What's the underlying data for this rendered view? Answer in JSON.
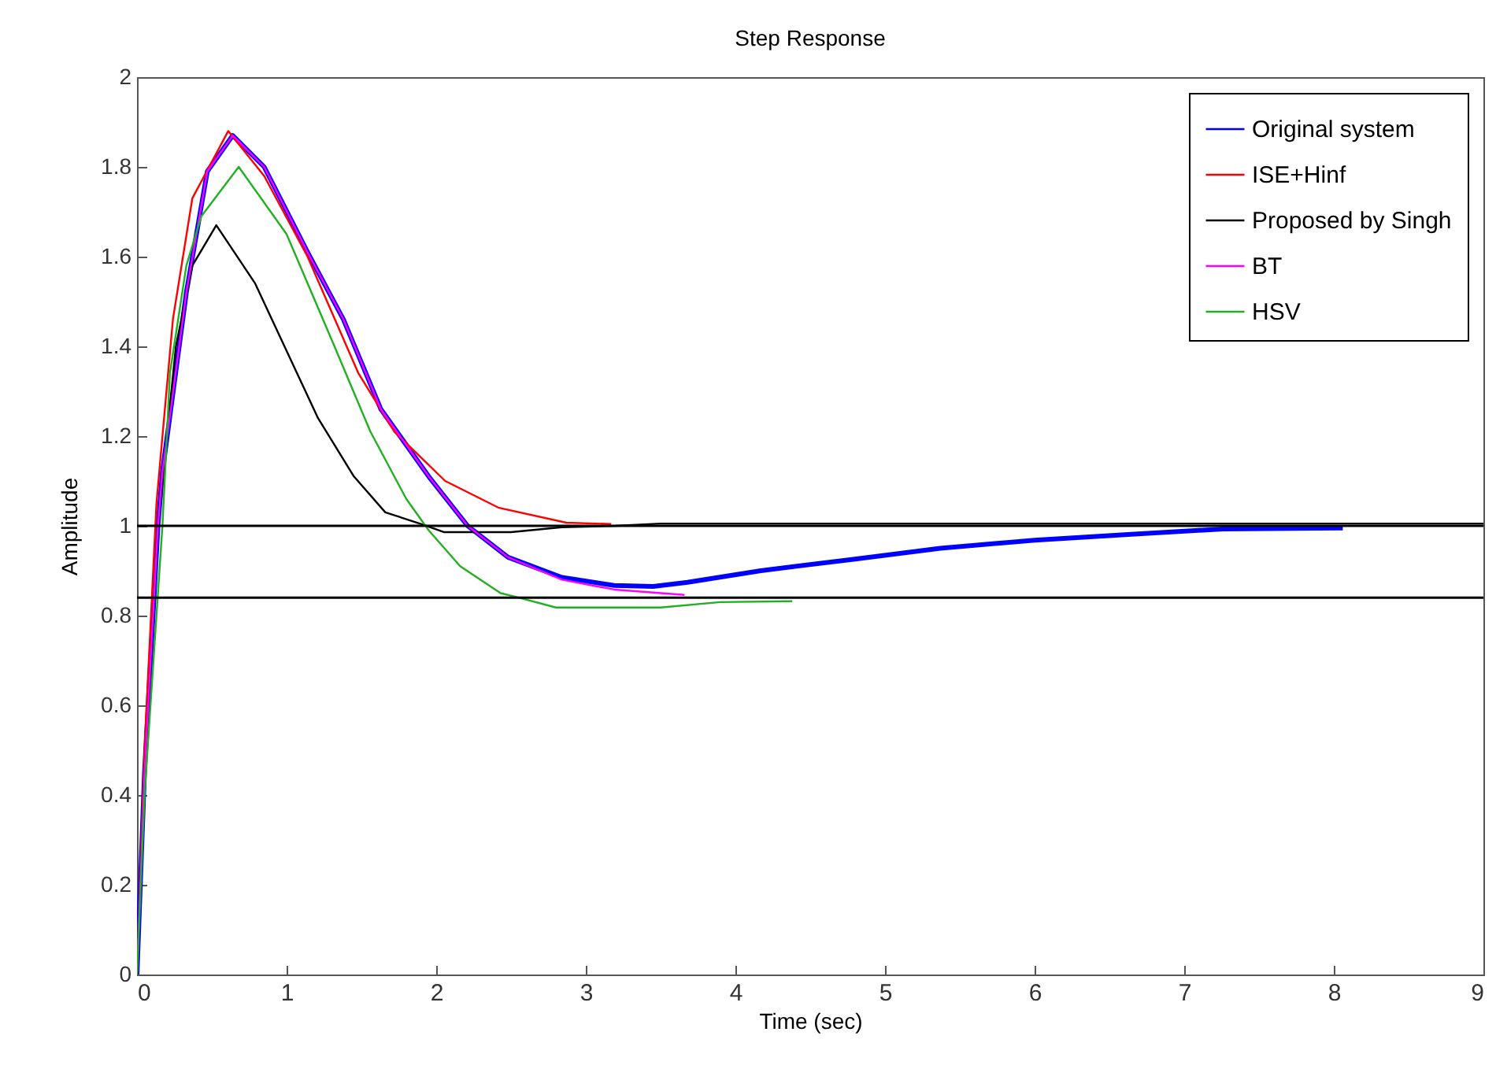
{
  "chart_data": {
    "type": "line",
    "title": "Step Response",
    "xlabel": "Time (sec)",
    "ylabel": "Amplitude",
    "xlim": [
      0,
      9
    ],
    "xticks": [
      0,
      1,
      2,
      3,
      4,
      5,
      6,
      7,
      8,
      9
    ],
    "ylim": [
      0,
      2
    ],
    "yticks": [
      0,
      0.2,
      0.4,
      0.6,
      0.8,
      1,
      1.2,
      1.4,
      1.6,
      1.8,
      2
    ],
    "legend": "top right",
    "ref_lines": [
      {
        "axis": "y",
        "value": 1,
        "color": "#000000"
      },
      {
        "axis": "y",
        "value": 0.84,
        "color": "#000000"
      }
    ],
    "series": [
      {
        "name": "Original system",
        "color": "#0000ff",
        "x": [
          0,
          0.05,
          0.14,
          0.17,
          0.33,
          0.47,
          0.64,
          0.85,
          1.14,
          1.38,
          1.63,
          1.95,
          2.21,
          2.48,
          2.84,
          3.19,
          3.45,
          3.68,
          4.17,
          4.8,
          5.37,
          6.0,
          6.69,
          7.26,
          8.06
        ],
        "values": [
          0,
          0.45,
          1.0,
          1.12,
          1.52,
          1.79,
          1.87,
          1.8,
          1.61,
          1.46,
          1.26,
          1.11,
          1.0,
          0.93,
          0.885,
          0.867,
          0.865,
          0.874,
          0.9,
          0.926,
          0.95,
          0.968,
          0.982,
          0.993,
          0.995
        ]
      },
      {
        "name": "ISE+Hinf",
        "color": "#ff0000",
        "x": [
          0,
          0.05,
          0.13,
          0.24,
          0.37,
          0.61,
          0.85,
          1.14,
          1.48,
          1.72,
          2.06,
          2.42,
          2.87,
          3.17
        ],
        "values": [
          0,
          0.5,
          1.05,
          1.46,
          1.73,
          1.88,
          1.78,
          1.6,
          1.34,
          1.21,
          1.1,
          1.04,
          1.007,
          1.004
        ]
      },
      {
        "name": "Proposed by Singh",
        "color": "#000000",
        "x": [
          0,
          0.05,
          0.14,
          0.26,
          0.37,
          0.53,
          0.79,
          1.0,
          1.21,
          1.45,
          1.66,
          1.91,
          2.05,
          2.5,
          2.84,
          3.2,
          3.5,
          9
        ],
        "values": [
          0,
          0.45,
          1.0,
          1.4,
          1.58,
          1.67,
          1.54,
          1.39,
          1.24,
          1.11,
          1.03,
          1.003,
          0.986,
          0.986,
          0.997,
          1.0,
          1.005,
          1.005
        ]
      },
      {
        "name": "BT",
        "color": "#ff00ff",
        "x": [
          0,
          0.05,
          0.14,
          0.17,
          0.33,
          0.47,
          0.64,
          0.85,
          1.14,
          1.38,
          1.63,
          1.95,
          2.21,
          2.48,
          2.84,
          3.19,
          3.66
        ],
        "values": [
          0,
          0.45,
          1.0,
          1.12,
          1.52,
          1.79,
          1.87,
          1.8,
          1.61,
          1.46,
          1.26,
          1.11,
          1.0,
          0.93,
          0.88,
          0.858,
          0.846
        ]
      },
      {
        "name": "HSV",
        "color": "#22b022",
        "x": [
          0,
          0.05,
          0.17,
          0.22,
          0.33,
          0.43,
          0.68,
          1.0,
          1.32,
          1.56,
          1.8,
          1.95,
          2.16,
          2.43,
          2.53,
          2.8,
          3.5,
          3.9,
          4.38
        ],
        "values": [
          0,
          0.4,
          1.0,
          1.34,
          1.58,
          1.69,
          1.8,
          1.65,
          1.4,
          1.21,
          1.06,
          0.99,
          0.91,
          0.85,
          0.842,
          0.818,
          0.818,
          0.83,
          0.832
        ]
      }
    ]
  }
}
